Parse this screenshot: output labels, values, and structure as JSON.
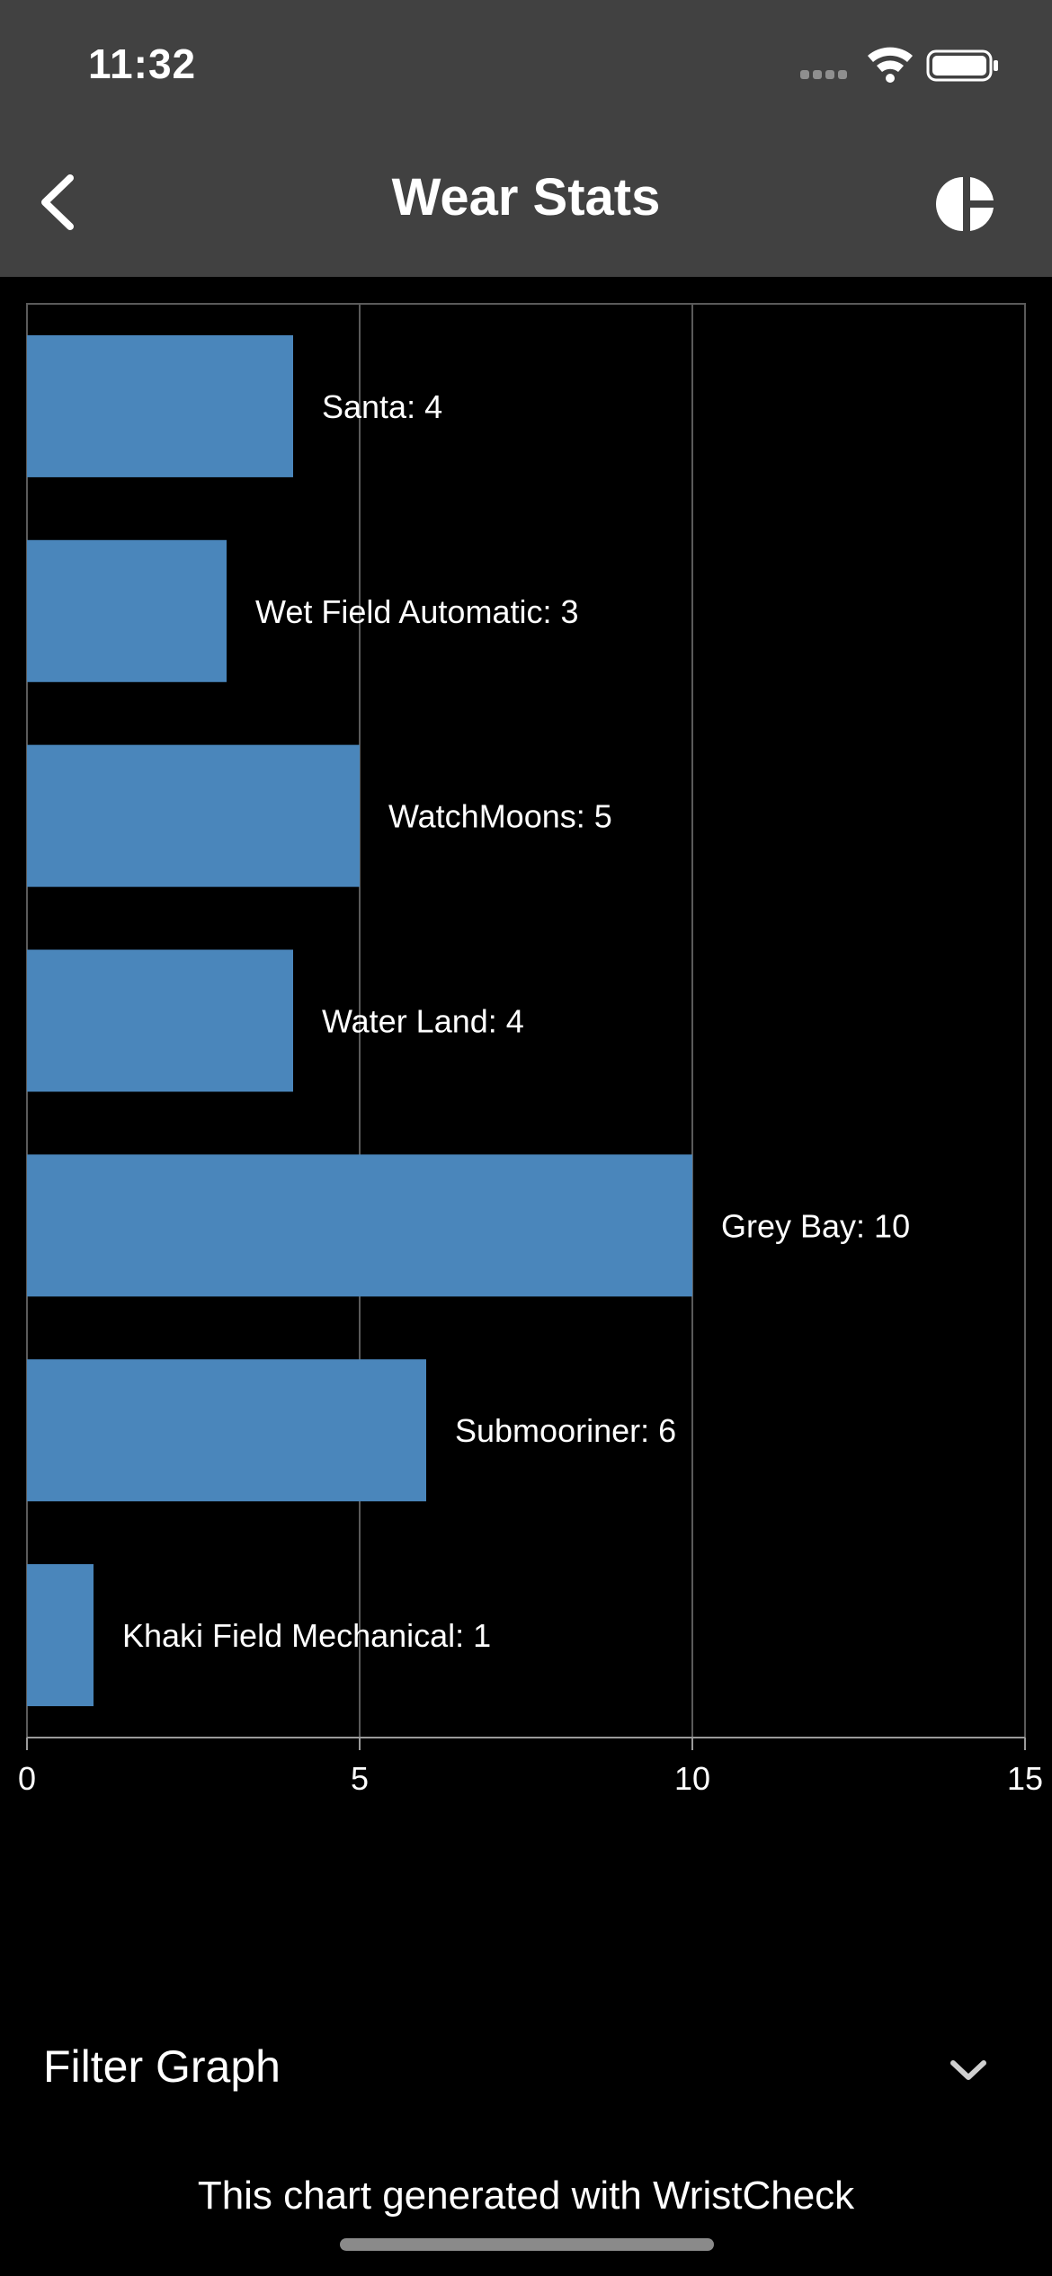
{
  "status_bar": {
    "time": "11:32"
  },
  "nav": {
    "title": "Wear Stats",
    "back_icon": "chevron-left-icon",
    "chart_icon": "pie-chart-icon"
  },
  "chart_data": {
    "type": "bar",
    "orientation": "horizontal",
    "categories": [
      "Santa",
      "Wet Field Automatic",
      "WatchMoons",
      "Water Land",
      "Grey Bay",
      "Submooriner",
      "Khaki Field Mechanical"
    ],
    "values": [
      4,
      3,
      5,
      4,
      10,
      6,
      1
    ],
    "data_labels": [
      "Santa: 4",
      "Wet Field Automatic: 3",
      "WatchMoons: 5",
      "Water Land: 4",
      "Grey Bay: 10",
      "Submooriner: 6",
      "Khaki Field Mechanical: 1"
    ],
    "xlim": [
      0,
      15
    ],
    "xticks": [
      0,
      5,
      10,
      15
    ],
    "grid": true,
    "bar_color": "#4a86bb",
    "grid_color": "#5a5a5a"
  },
  "filter": {
    "label": "Filter Graph",
    "icon": "chevron-down-icon"
  },
  "footer": {
    "text": "This chart generated with WristCheck"
  },
  "colors": {
    "header_bg": "#414141",
    "page_bg": "#000000",
    "bar": "#4a86bb"
  }
}
